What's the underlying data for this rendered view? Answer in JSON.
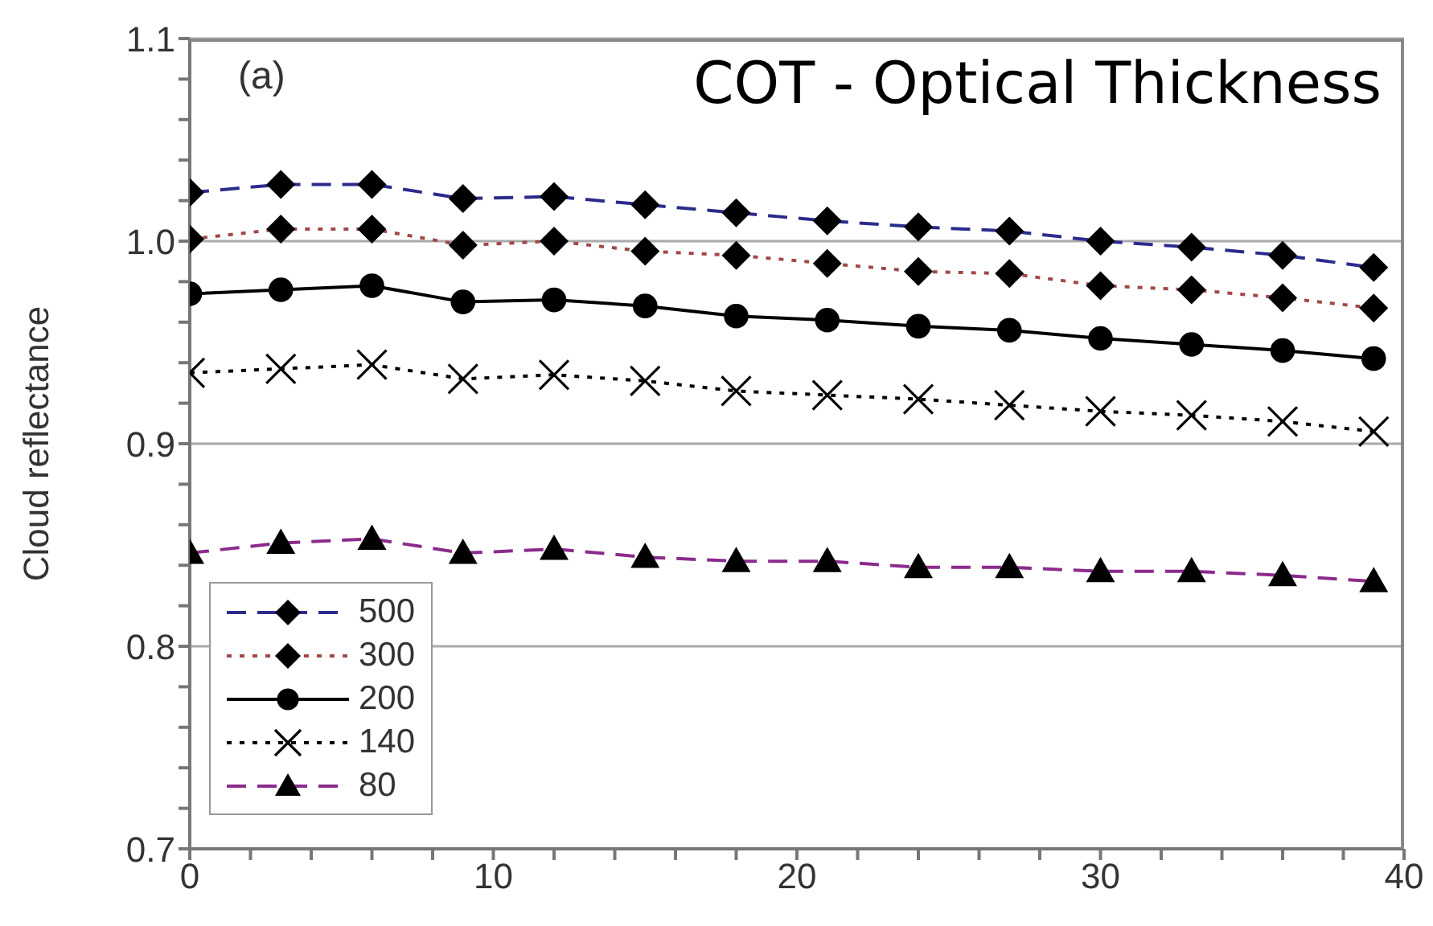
{
  "chart_data": {
    "type": "line",
    "title": "COT - Optical Thickness",
    "ylabel": "Cloud reflectance",
    "annotations": [
      "(a)"
    ],
    "x": [
      0,
      3,
      6,
      9,
      12,
      15,
      18,
      21,
      24,
      27,
      30,
      33,
      36,
      39
    ],
    "series": [
      {
        "name": "500",
        "color": "#2b2b8c",
        "marker": "diamond",
        "line_style": "dashed",
        "values": [
          1.024,
          1.028,
          1.028,
          1.021,
          1.022,
          1.018,
          1.014,
          1.01,
          1.007,
          1.005,
          1.0,
          0.997,
          0.993,
          0.987
        ]
      },
      {
        "name": "300",
        "color": "#a04848",
        "marker": "diamond",
        "line_style": "dotted",
        "values": [
          1.001,
          1.006,
          1.006,
          0.998,
          1.0,
          0.995,
          0.993,
          0.989,
          0.985,
          0.984,
          0.978,
          0.976,
          0.972,
          0.967
        ]
      },
      {
        "name": "200",
        "color": "#000000",
        "marker": "circle",
        "line_style": "solid",
        "values": [
          0.974,
          0.976,
          0.978,
          0.97,
          0.971,
          0.968,
          0.963,
          0.961,
          0.958,
          0.956,
          0.952,
          0.949,
          0.946,
          0.942
        ]
      },
      {
        "name": "140",
        "color": "#000000",
        "marker": "cross",
        "line_style": "dotted",
        "values": [
          0.935,
          0.937,
          0.939,
          0.932,
          0.934,
          0.931,
          0.926,
          0.924,
          0.922,
          0.919,
          0.916,
          0.914,
          0.911,
          0.906
        ]
      },
      {
        "name": "80",
        "color": "#8c2b8c",
        "marker": "triangle",
        "line_style": "dashed",
        "values": [
          0.846,
          0.851,
          0.853,
          0.846,
          0.848,
          0.844,
          0.842,
          0.842,
          0.839,
          0.839,
          0.837,
          0.837,
          0.835,
          0.832
        ]
      }
    ],
    "xlim": [
      0,
      40
    ],
    "xticks": [
      0,
      {
        "value": 2,
        "label": null
      },
      {
        "value": 4,
        "label": null
      },
      {
        "value": 6,
        "label": null
      },
      {
        "value": 8,
        "label": null
      },
      10,
      {
        "value": 12,
        "label": null
      },
      {
        "value": 14,
        "label": null
      },
      {
        "value": 16,
        "label": null
      },
      {
        "value": 18,
        "label": null
      },
      20,
      {
        "value": 22,
        "label": null
      },
      {
        "value": 24,
        "label": null
      },
      {
        "value": 26,
        "label": null
      },
      {
        "value": 28,
        "label": null
      },
      30,
      {
        "value": 32,
        "label": null
      },
      {
        "value": 34,
        "label": null
      },
      {
        "value": 36,
        "label": null
      },
      {
        "value": 38,
        "label": null
      },
      40
    ],
    "ylim": [
      0.7,
      1.1
    ],
    "yticks": [
      0.7,
      {
        "value": 0.72,
        "label": null
      },
      {
        "value": 0.74,
        "label": null
      },
      {
        "value": 0.76,
        "label": null
      },
      {
        "value": 0.78,
        "label": null
      },
      0.8,
      {
        "value": 0.82,
        "label": null
      },
      {
        "value": 0.84,
        "label": null
      },
      {
        "value": 0.86,
        "label": null
      },
      {
        "value": 0.88,
        "label": null
      },
      0.9,
      {
        "value": 0.92,
        "label": null
      },
      {
        "value": 0.94,
        "label": null
      },
      {
        "value": 0.96,
        "label": null
      },
      {
        "value": 0.98,
        "label": null
      },
      {
        "value": 1,
        "label": "1.0"
      },
      {
        "value": 1.02,
        "label": null
      },
      {
        "value": 1.04,
        "label": null
      },
      {
        "value": 1.06,
        "label": null
      },
      {
        "value": 1.08,
        "label": null
      },
      1.1
    ],
    "grid": "y",
    "legend": "bottom left"
  }
}
